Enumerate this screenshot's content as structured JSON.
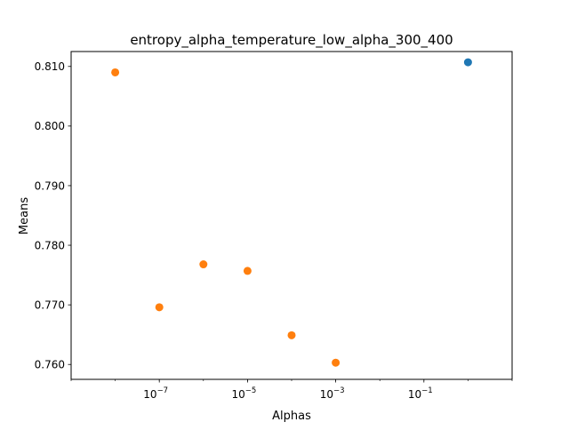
{
  "chart_data": {
    "type": "scatter",
    "title": "entropy_alpha_temperature_low_alpha_300_400",
    "xlabel": "Alphas",
    "ylabel": "Means",
    "xscale": "log",
    "xlim_exponent": [
      -9,
      1
    ],
    "ylim": [
      0.7575,
      0.8125
    ],
    "grid": false,
    "legend": "none",
    "x_ticks": [
      {
        "exponent": -7,
        "base": "10",
        "power": "−7"
      },
      {
        "exponent": -5,
        "base": "10",
        "power": "−5"
      },
      {
        "exponent": -3,
        "base": "10",
        "power": "−3"
      },
      {
        "exponent": -1,
        "base": "10",
        "power": "−1"
      }
    ],
    "y_ticks": [
      {
        "value": 0.76,
        "label": "0.760"
      },
      {
        "value": 0.77,
        "label": "0.770"
      },
      {
        "value": 0.78,
        "label": "0.780"
      },
      {
        "value": 0.79,
        "label": "0.790"
      },
      {
        "value": 0.8,
        "label": "0.800"
      },
      {
        "value": 0.81,
        "label": "0.810"
      }
    ],
    "series": [
      {
        "color": "#1f77b4",
        "points": [
          {
            "x": 1,
            "y": 0.8107
          }
        ]
      },
      {
        "color": "#ff7f0e",
        "points": [
          {
            "x": 1e-08,
            "y": 0.809
          },
          {
            "x": 1e-07,
            "y": 0.7696
          },
          {
            "x": 1e-06,
            "y": 0.7768
          },
          {
            "x": 1e-05,
            "y": 0.7757
          },
          {
            "x": 0.0001,
            "y": 0.7649
          },
          {
            "x": 0.001,
            "y": 0.7603
          }
        ]
      }
    ]
  }
}
